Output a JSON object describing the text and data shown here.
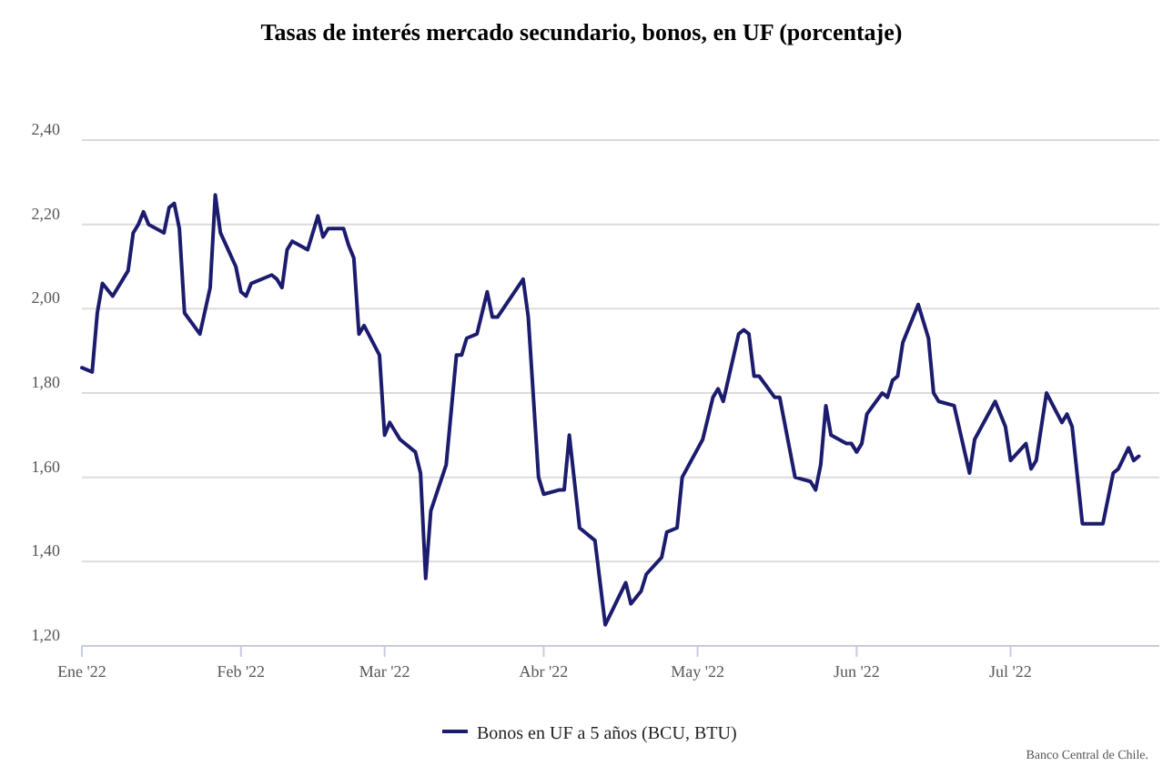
{
  "chart_data": {
    "type": "line",
    "title": "Tasas de interés mercado secundario, bonos, en UF (porcentaje)",
    "annotations": [
      "Banco Central de Chile."
    ],
    "x": [
      "2022-01-01",
      "2022-01-03",
      "2022-01-04",
      "2022-01-05",
      "2022-01-07",
      "2022-01-10",
      "2022-01-11",
      "2022-01-12",
      "2022-01-13",
      "2022-01-14",
      "2022-01-17",
      "2022-01-18",
      "2022-01-19",
      "2022-01-20",
      "2022-01-21",
      "2022-01-24",
      "2022-01-26",
      "2022-01-27",
      "2022-01-28",
      "2022-01-31",
      "2022-02-01",
      "2022-02-02",
      "2022-02-03",
      "2022-02-07",
      "2022-02-08",
      "2022-02-09",
      "2022-02-10",
      "2022-02-11",
      "2022-02-14",
      "2022-02-16",
      "2022-02-17",
      "2022-02-18",
      "2022-02-21",
      "2022-02-22",
      "2022-02-23",
      "2022-02-24",
      "2022-02-25",
      "2022-02-28",
      "2022-03-01",
      "2022-03-02",
      "2022-03-04",
      "2022-03-07",
      "2022-03-08",
      "2022-03-09",
      "2022-03-10",
      "2022-03-13",
      "2022-03-15",
      "2022-03-16",
      "2022-03-17",
      "2022-03-19",
      "2022-03-21",
      "2022-03-22",
      "2022-03-23",
      "2022-03-28",
      "2022-03-29",
      "2022-03-31",
      "2022-04-01",
      "2022-04-04",
      "2022-04-05",
      "2022-04-06",
      "2022-04-08",
      "2022-04-11",
      "2022-04-13",
      "2022-04-17",
      "2022-04-18",
      "2022-04-20",
      "2022-04-21",
      "2022-04-24",
      "2022-04-25",
      "2022-04-27",
      "2022-04-28",
      "2022-05-02",
      "2022-05-04",
      "2022-05-05",
      "2022-05-06",
      "2022-05-09",
      "2022-05-10",
      "2022-05-11",
      "2022-05-12",
      "2022-05-13",
      "2022-05-16",
      "2022-05-17",
      "2022-05-20",
      "2022-05-23",
      "2022-05-24",
      "2022-05-25",
      "2022-05-26",
      "2022-05-27",
      "2022-05-30",
      "2022-05-31",
      "2022-06-01",
      "2022-06-02",
      "2022-06-03",
      "2022-06-06",
      "2022-06-07",
      "2022-06-08",
      "2022-06-09",
      "2022-06-10",
      "2022-06-13",
      "2022-06-15",
      "2022-06-16",
      "2022-06-17",
      "2022-06-20",
      "2022-06-23",
      "2022-06-24",
      "2022-06-28",
      "2022-06-30",
      "2022-07-01",
      "2022-07-04",
      "2022-07-05",
      "2022-07-06",
      "2022-07-08",
      "2022-07-11",
      "2022-07-12",
      "2022-07-13",
      "2022-07-15",
      "2022-07-19",
      "2022-07-21",
      "2022-07-22",
      "2022-07-24",
      "2022-07-25",
      "2022-07-26"
    ],
    "series": [
      {
        "name": "Bonos en UF a 5 años (BCU, BTU)",
        "color": "#1c1c6e",
        "values": [
          1.86,
          1.85,
          1.99,
          2.06,
          2.03,
          2.09,
          2.18,
          2.2,
          2.23,
          2.2,
          2.18,
          2.24,
          2.25,
          2.19,
          1.99,
          1.94,
          2.05,
          2.27,
          2.18,
          2.1,
          2.04,
          2.03,
          2.06,
          2.08,
          2.07,
          2.05,
          2.14,
          2.16,
          2.14,
          2.22,
          2.17,
          2.19,
          2.19,
          2.15,
          2.12,
          1.94,
          1.96,
          1.89,
          1.7,
          1.73,
          1.69,
          1.66,
          1.61,
          1.36,
          1.52,
          1.63,
          1.89,
          1.89,
          1.93,
          1.94,
          2.04,
          1.98,
          1.98,
          2.07,
          1.98,
          1.6,
          1.56,
          1.57,
          1.57,
          1.7,
          1.48,
          1.45,
          1.25,
          1.35,
          1.3,
          1.33,
          1.37,
          1.41,
          1.47,
          1.48,
          1.6,
          1.69,
          1.79,
          1.81,
          1.78,
          1.94,
          1.95,
          1.94,
          1.84,
          1.84,
          1.79,
          1.79,
          1.6,
          1.59,
          1.57,
          1.63,
          1.77,
          1.7,
          1.68,
          1.68,
          1.66,
          1.68,
          1.75,
          1.8,
          1.79,
          1.83,
          1.84,
          1.92,
          2.01,
          1.93,
          1.8,
          1.78,
          1.77,
          1.61,
          1.69,
          1.78,
          1.72,
          1.64,
          1.68,
          1.62,
          1.64,
          1.8,
          1.73,
          1.75,
          1.72,
          1.49,
          1.49,
          1.61,
          1.62,
          1.67,
          1.64,
          1.65
        ]
      }
    ],
    "xlim": [
      "2022-01-01",
      "2022-07-30"
    ],
    "xticks": [
      {
        "value": "2022-01-01",
        "label": "Ene '22"
      },
      {
        "value": "2022-02-01",
        "label": "Feb '22"
      },
      {
        "value": "2022-03-01",
        "label": "Mar '22"
      },
      {
        "value": "2022-04-01",
        "label": "Abr '22"
      },
      {
        "value": "2022-05-01",
        "label": "May '22"
      },
      {
        "value": "2022-06-01",
        "label": "Jun '22"
      },
      {
        "value": "2022-07-01",
        "label": "Jul '22"
      }
    ],
    "ylim": [
      1.2,
      2.4
    ],
    "yticks": [
      {
        "value": 1.2,
        "label": "1,20"
      },
      {
        "value": 1.4,
        "label": "1,40"
      },
      {
        "value": 1.6,
        "label": "1,60"
      },
      {
        "value": 1.8,
        "label": "1,80"
      },
      {
        "value": 2.0,
        "label": "2,00"
      },
      {
        "value": 2.2,
        "label": "2,20"
      },
      {
        "value": 2.4,
        "label": "2,40"
      }
    ],
    "grid": "y",
    "legend": "bottom",
    "marker": "none",
    "line_style": "solid"
  }
}
